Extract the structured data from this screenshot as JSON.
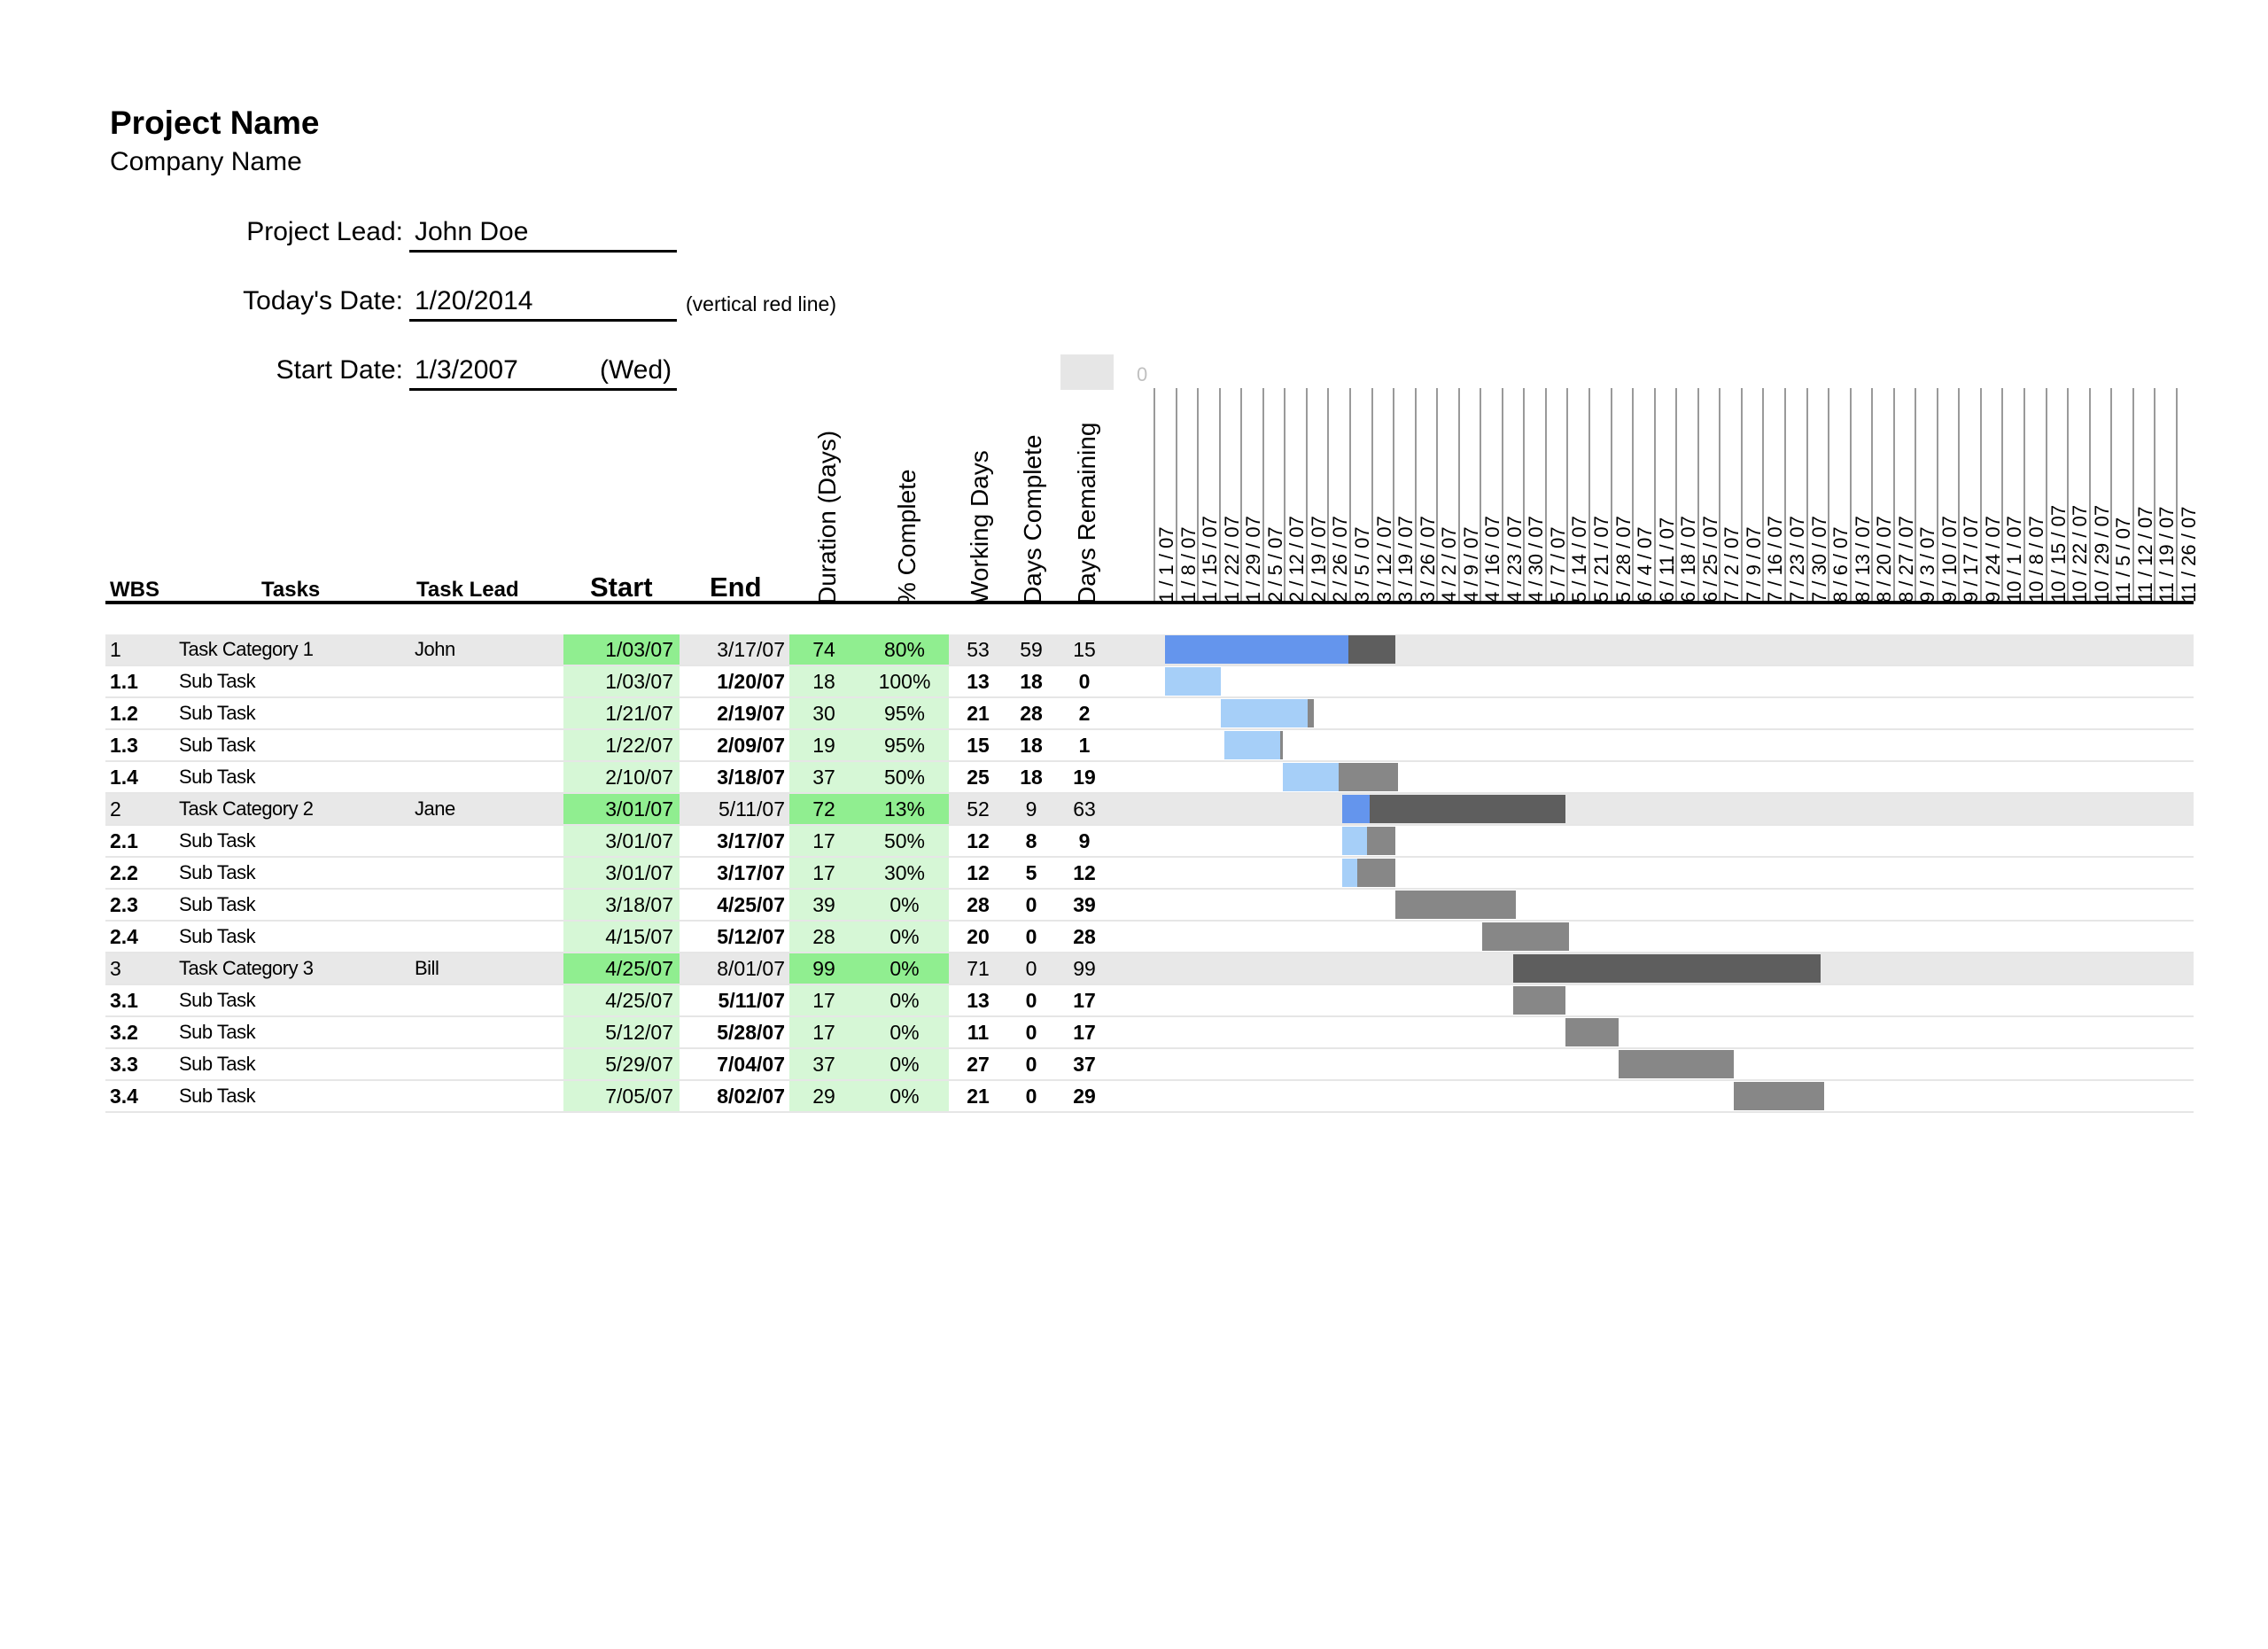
{
  "header": {
    "project_name": "Project Name",
    "company_name": "Company Name",
    "project_lead_label": "Project Lead:",
    "project_lead_value": "John Doe",
    "todays_date_label": "Today's Date:",
    "todays_date_value": "1/20/2014",
    "todays_date_note": "(vertical red line)",
    "start_date_label": "Start Date:",
    "start_date_value": "1/3/2007",
    "start_date_day": "(Wed)",
    "week_offset": "0"
  },
  "columns": {
    "wbs": "WBS",
    "tasks": "Tasks",
    "task_lead": "Task Lead",
    "start": "Start",
    "end": "End",
    "duration": "Duration (Days)",
    "pct_complete": "% Complete",
    "working_days": "Working Days",
    "days_complete": "Days Complete",
    "days_remaining": "Days Remaining"
  },
  "timeline_dates": [
    "1 / 1 / 07",
    "1 / 8 / 07",
    "1 / 15 / 07",
    "1 / 22 / 07",
    "1 / 29 / 07",
    "2 / 5 / 07",
    "2 / 12 / 07",
    "2 / 19 / 07",
    "2 / 26 / 07",
    "3 / 5 / 07",
    "3 / 12 / 07",
    "3 / 19 / 07",
    "3 / 26 / 07",
    "4 / 2 / 07",
    "4 / 9 / 07",
    "4 / 16 / 07",
    "4 / 23 / 07",
    "4 / 30 / 07",
    "5 / 7 / 07",
    "5 / 14 / 07",
    "5 / 21 / 07",
    "5 / 28 / 07",
    "6 / 4 / 07",
    "6 / 11 / 07",
    "6 / 18 / 07",
    "6 / 25 / 07",
    "7 / 2 / 07",
    "7 / 9 / 07",
    "7 / 16 / 07",
    "7 / 23 / 07",
    "7 / 30 / 07",
    "8 / 6 / 07",
    "8 / 13 / 07",
    "8 / 20 / 07",
    "8 / 27 / 07",
    "9 / 3 / 07",
    "9 / 10 / 07",
    "9 / 17 / 07",
    "9 / 24 / 07",
    "10 / 1 / 07",
    "10 / 8 / 07",
    "10 / 15 / 07",
    "10 / 22 / 07",
    "10 / 29 / 07",
    "11 / 5 / 07",
    "11 / 12 / 07",
    "11 / 19 / 07",
    "11 / 26 / 07"
  ],
  "tasks": [
    {
      "wbs": "1",
      "name": "Task Category 1",
      "lead": "John",
      "start": "1/03/07",
      "end": "3/17/07",
      "duration": "74",
      "pct": "80%",
      "working": "53",
      "done": "59",
      "remaining": "15",
      "category": true
    },
    {
      "wbs": "1.1",
      "name": "Sub Task",
      "lead": "",
      "start": "1/03/07",
      "end": "1/20/07",
      "duration": "18",
      "pct": "100%",
      "working": "13",
      "done": "18",
      "remaining": "0",
      "category": false
    },
    {
      "wbs": "1.2",
      "name": "Sub Task",
      "lead": "",
      "start": "1/21/07",
      "end": "2/19/07",
      "duration": "30",
      "pct": "95%",
      "working": "21",
      "done": "28",
      "remaining": "2",
      "category": false
    },
    {
      "wbs": "1.3",
      "name": "Sub Task",
      "lead": "",
      "start": "1/22/07",
      "end": "2/09/07",
      "duration": "19",
      "pct": "95%",
      "working": "15",
      "done": "18",
      "remaining": "1",
      "category": false
    },
    {
      "wbs": "1.4",
      "name": "Sub Task",
      "lead": "",
      "start": "2/10/07",
      "end": "3/18/07",
      "duration": "37",
      "pct": "50%",
      "working": "25",
      "done": "18",
      "remaining": "19",
      "category": false
    },
    {
      "wbs": "2",
      "name": "Task Category 2",
      "lead": "Jane",
      "start": "3/01/07",
      "end": "5/11/07",
      "duration": "72",
      "pct": "13%",
      "working": "52",
      "done": "9",
      "remaining": "63",
      "category": true
    },
    {
      "wbs": "2.1",
      "name": "Sub Task",
      "lead": "",
      "start": "3/01/07",
      "end": "3/17/07",
      "duration": "17",
      "pct": "50%",
      "working": "12",
      "done": "8",
      "remaining": "9",
      "category": false
    },
    {
      "wbs": "2.2",
      "name": "Sub Task",
      "lead": "",
      "start": "3/01/07",
      "end": "3/17/07",
      "duration": "17",
      "pct": "30%",
      "working": "12",
      "done": "5",
      "remaining": "12",
      "category": false
    },
    {
      "wbs": "2.3",
      "name": "Sub Task",
      "lead": "",
      "start": "3/18/07",
      "end": "4/25/07",
      "duration": "39",
      "pct": "0%",
      "working": "28",
      "done": "0",
      "remaining": "39",
      "category": false
    },
    {
      "wbs": "2.4",
      "name": "Sub Task",
      "lead": "",
      "start": "4/15/07",
      "end": "5/12/07",
      "duration": "28",
      "pct": "0%",
      "working": "20",
      "done": "0",
      "remaining": "28",
      "category": false
    },
    {
      "wbs": "3",
      "name": "Task Category 3",
      "lead": "Bill",
      "start": "4/25/07",
      "end": "8/01/07",
      "duration": "99",
      "pct": "0%",
      "working": "71",
      "done": "0",
      "remaining": "99",
      "category": true
    },
    {
      "wbs": "3.1",
      "name": "Sub Task",
      "lead": "",
      "start": "4/25/07",
      "end": "5/11/07",
      "duration": "17",
      "pct": "0%",
      "working": "13",
      "done": "0",
      "remaining": "17",
      "category": false
    },
    {
      "wbs": "3.2",
      "name": "Sub Task",
      "lead": "",
      "start": "5/12/07",
      "end": "5/28/07",
      "duration": "17",
      "pct": "0%",
      "working": "11",
      "done": "0",
      "remaining": "17",
      "category": false
    },
    {
      "wbs": "3.3",
      "name": "Sub Task",
      "lead": "",
      "start": "5/29/07",
      "end": "7/04/07",
      "duration": "37",
      "pct": "0%",
      "working": "27",
      "done": "0",
      "remaining": "37",
      "category": false
    },
    {
      "wbs": "3.4",
      "name": "Sub Task",
      "lead": "",
      "start": "7/05/07",
      "end": "8/02/07",
      "duration": "29",
      "pct": "0%",
      "working": "21",
      "done": "0",
      "remaining": "29",
      "category": false
    }
  ],
  "colors": {
    "category_row_bg": "#e8e8e8",
    "start_green_category": "#90ee90",
    "start_green_sub": "#d6f7d6",
    "done_category": "#6495ed",
    "done_sub": "#a6cff8",
    "remaining_category": "#5e5e5e",
    "remaining_sub": "#878787"
  }
}
